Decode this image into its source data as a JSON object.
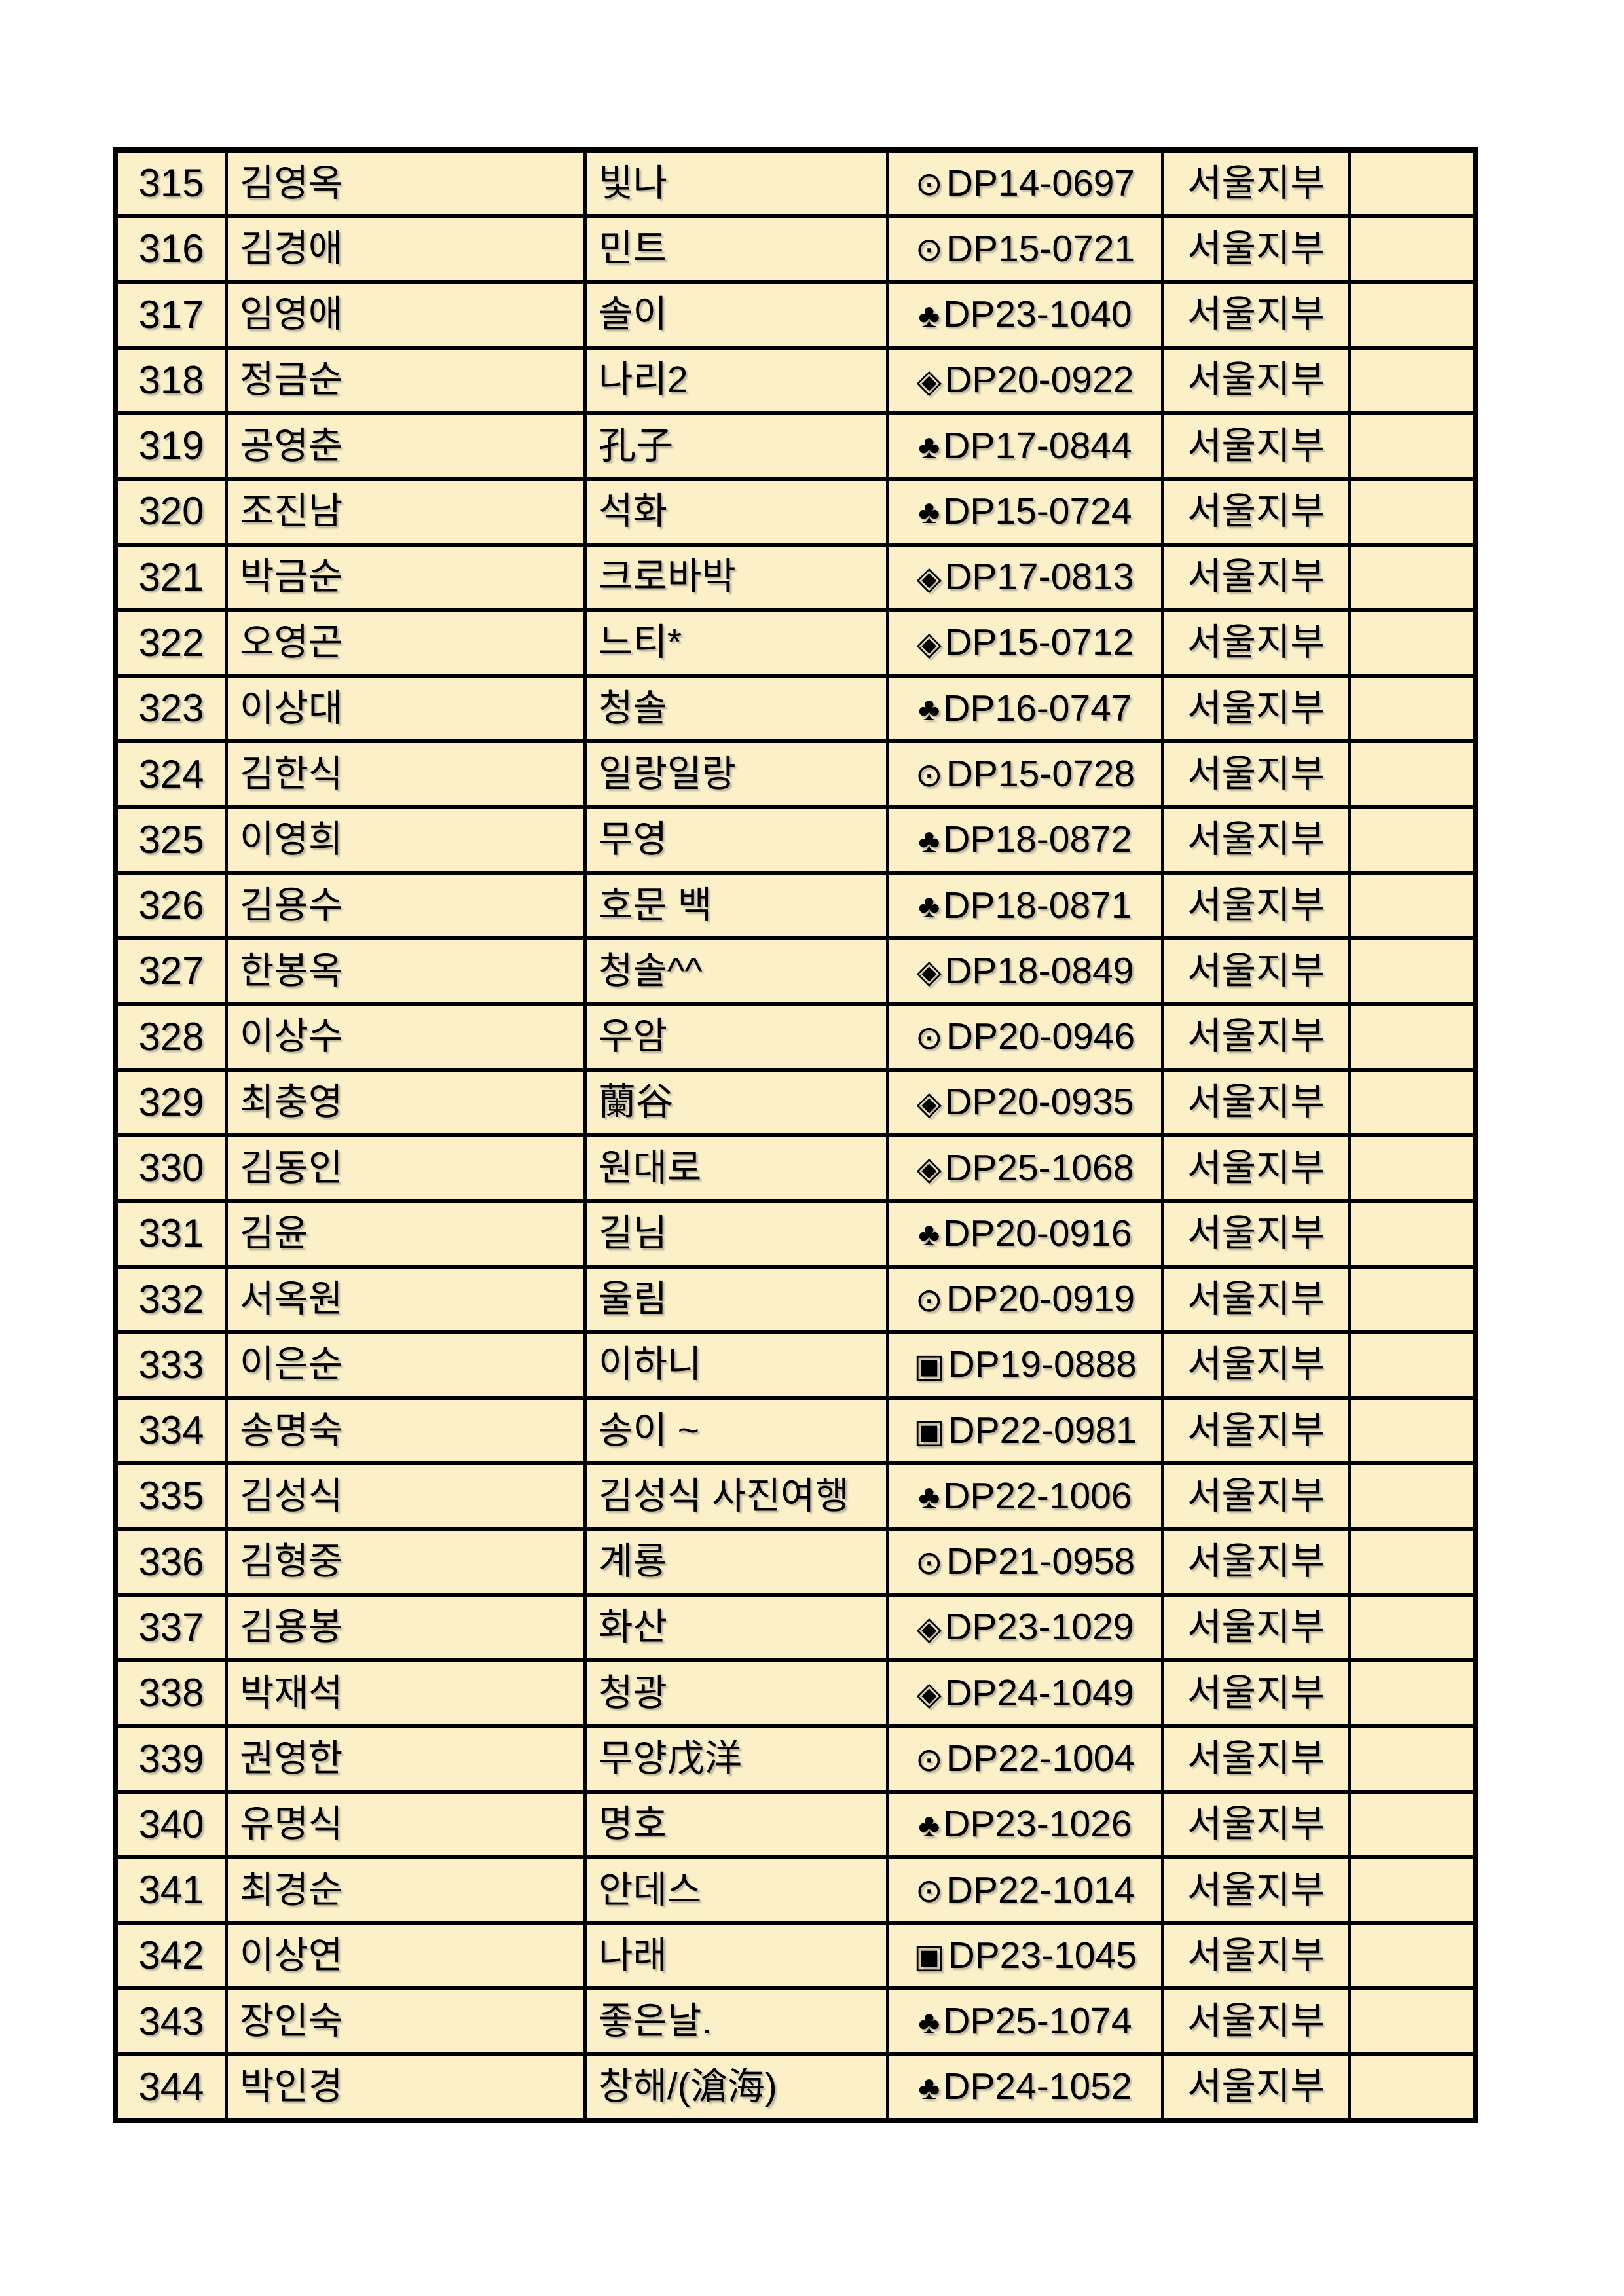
{
  "table": {
    "cell_background": "#FBF0C8",
    "border_color": "#000000",
    "branch_common": "서울지부",
    "rows": [
      {
        "no": "315",
        "name": "김영옥",
        "nickname": "빛나",
        "symbol": "⊙",
        "code": "DP14-0697",
        "branch": "서울지부",
        "note": ""
      },
      {
        "no": "316",
        "name": "김경애",
        "nickname": "민트",
        "symbol": "⊙",
        "code": "DP15-0721",
        "branch": "서울지부",
        "note": ""
      },
      {
        "no": "317",
        "name": "임영애",
        "nickname": "솔이",
        "symbol": "♣",
        "code": "DP23-1040",
        "branch": "서울지부",
        "note": ""
      },
      {
        "no": "318",
        "name": "정금순",
        "nickname": "나리2",
        "symbol": "◈",
        "code": "DP20-0922",
        "branch": "서울지부",
        "note": ""
      },
      {
        "no": "319",
        "name": "공영춘",
        "nickname": "孔子",
        "symbol": "♣",
        "code": "DP17-0844",
        "branch": "서울지부",
        "note": ""
      },
      {
        "no": "320",
        "name": "조진남",
        "nickname": "석화",
        "symbol": "♣",
        "code": "DP15-0724",
        "branch": "서울지부",
        "note": ""
      },
      {
        "no": "321",
        "name": "박금순",
        "nickname": "크로바박",
        "symbol": "◈",
        "code": "DP17-0813",
        "branch": "서울지부",
        "note": ""
      },
      {
        "no": "322",
        "name": "오영곤",
        "nickname": "느티*",
        "symbol": "◈",
        "code": "DP15-0712",
        "branch": "서울지부",
        "note": ""
      },
      {
        "no": "323",
        "name": "이상대",
        "nickname": "청솔",
        "symbol": "♣",
        "code": "DP16-0747",
        "branch": "서울지부",
        "note": ""
      },
      {
        "no": "324",
        "name": "김한식",
        "nickname": "일랑일랑",
        "symbol": "⊙",
        "code": "DP15-0728",
        "branch": "서울지부",
        "note": ""
      },
      {
        "no": "325",
        "name": "이영희",
        "nickname": "무영",
        "symbol": "♣",
        "code": "DP18-0872",
        "branch": "서울지부",
        "note": ""
      },
      {
        "no": "326",
        "name": "김용수",
        "nickname": "호문 백",
        "symbol": "♣",
        "code": "DP18-0871",
        "branch": "서울지부",
        "note": ""
      },
      {
        "no": "327",
        "name": "한봉옥",
        "nickname": "청솔^^",
        "symbol": "◈",
        "code": "DP18-0849",
        "branch": "서울지부",
        "note": ""
      },
      {
        "no": "328",
        "name": "이상수",
        "nickname": "우암",
        "symbol": "⊙",
        "code": "DP20-0946",
        "branch": "서울지부",
        "note": ""
      },
      {
        "no": "329",
        "name": "최충영",
        "nickname": "蘭谷",
        "symbol": "◈",
        "code": "DP20-0935",
        "branch": "서울지부",
        "note": ""
      },
      {
        "no": "330",
        "name": "김동인",
        "nickname": "원대로",
        "symbol": "◈",
        "code": "DP25-1068",
        "branch": "서울지부",
        "note": ""
      },
      {
        "no": "331",
        "name": "김윤",
        "nickname": "길님",
        "symbol": "♣",
        "code": "DP20-0916",
        "branch": "서울지부",
        "note": ""
      },
      {
        "no": "332",
        "name": "서옥원",
        "nickname": "울림",
        "symbol": "⊙",
        "code": "DP20-0919",
        "branch": "서울지부",
        "note": ""
      },
      {
        "no": "333",
        "name": "이은순",
        "nickname": "이하니",
        "symbol": "▣",
        "code": "DP19-0888",
        "branch": "서울지부",
        "note": ""
      },
      {
        "no": "334",
        "name": "송명숙",
        "nickname": "송이 ~",
        "symbol": "▣",
        "code": "DP22-0981",
        "branch": "서울지부",
        "note": ""
      },
      {
        "no": "335",
        "name": "김성식",
        "nickname": "김성식 사진여행",
        "symbol": "♣",
        "code": "DP22-1006",
        "branch": "서울지부",
        "note": ""
      },
      {
        "no": "336",
        "name": "김형중",
        "nickname": "계룡",
        "symbol": "⊙",
        "code": "DP21-0958",
        "branch": "서울지부",
        "note": ""
      },
      {
        "no": "337",
        "name": "김용봉",
        "nickname": "화산",
        "symbol": "◈",
        "code": "DP23-1029",
        "branch": "서울지부",
        "note": ""
      },
      {
        "no": "338",
        "name": "박재석",
        "nickname": "청광",
        "symbol": "◈",
        "code": "DP24-1049",
        "branch": "서울지부",
        "note": ""
      },
      {
        "no": "339",
        "name": "권영한",
        "nickname": "무양戊洋",
        "symbol": "⊙",
        "code": "DP22-1004",
        "branch": "서울지부",
        "note": ""
      },
      {
        "no": "340",
        "name": "유명식",
        "nickname": "명호",
        "symbol": "♣",
        "code": "DP23-1026",
        "branch": "서울지부",
        "note": ""
      },
      {
        "no": "341",
        "name": "최경순",
        "nickname": "안데스",
        "symbol": "⊙",
        "code": "DP22-1014",
        "branch": "서울지부",
        "note": ""
      },
      {
        "no": "342",
        "name": "이상연",
        "nickname": "나래",
        "symbol": "▣",
        "code": "DP23-1045",
        "branch": "서울지부",
        "note": ""
      },
      {
        "no": "343",
        "name": "장인숙",
        "nickname": "좋은날.",
        "symbol": "♣",
        "code": "DP25-1074",
        "branch": "서울지부",
        "note": ""
      },
      {
        "no": "344",
        "name": "박인경",
        "nickname": "창해/(滄海)",
        "symbol": "♣",
        "code": "DP24-1052",
        "branch": "서울지부",
        "note": ""
      }
    ]
  }
}
